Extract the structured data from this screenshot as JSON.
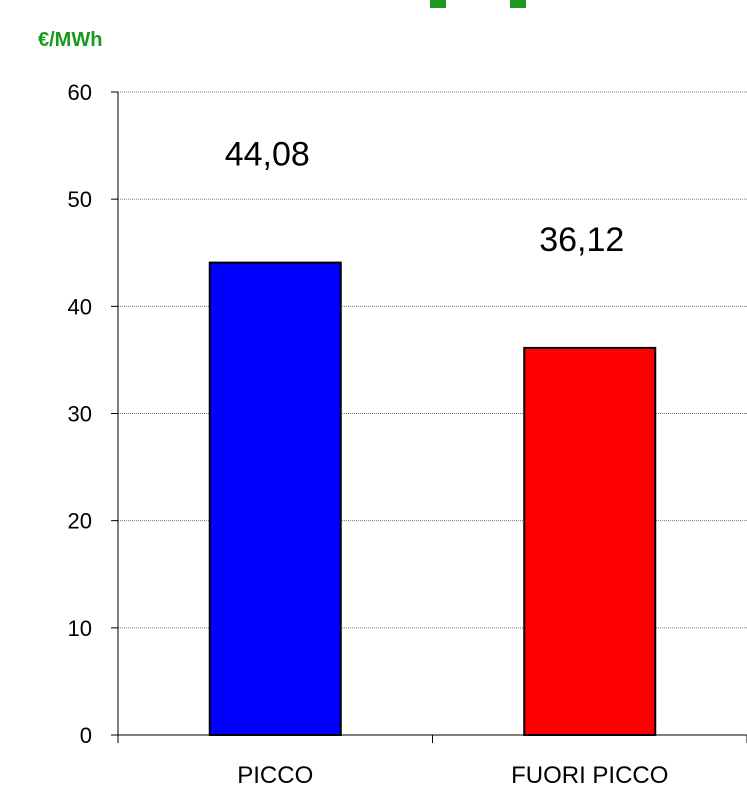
{
  "chart_data": {
    "type": "bar",
    "ylabel": "€/MWh",
    "categories": [
      "PICCO",
      "FUORI PICCO"
    ],
    "values": [
      44.08,
      36.12
    ],
    "value_labels": [
      "44,08",
      "36,12"
    ],
    "ylim": [
      0,
      60
    ],
    "yticks": [
      "0",
      "10",
      "20",
      "30",
      "40",
      "50",
      "60"
    ],
    "grid": true,
    "legend": "none",
    "colors": [
      "#0000ff",
      "#ff0000"
    ],
    "unit_color": "#1a9a1a"
  }
}
